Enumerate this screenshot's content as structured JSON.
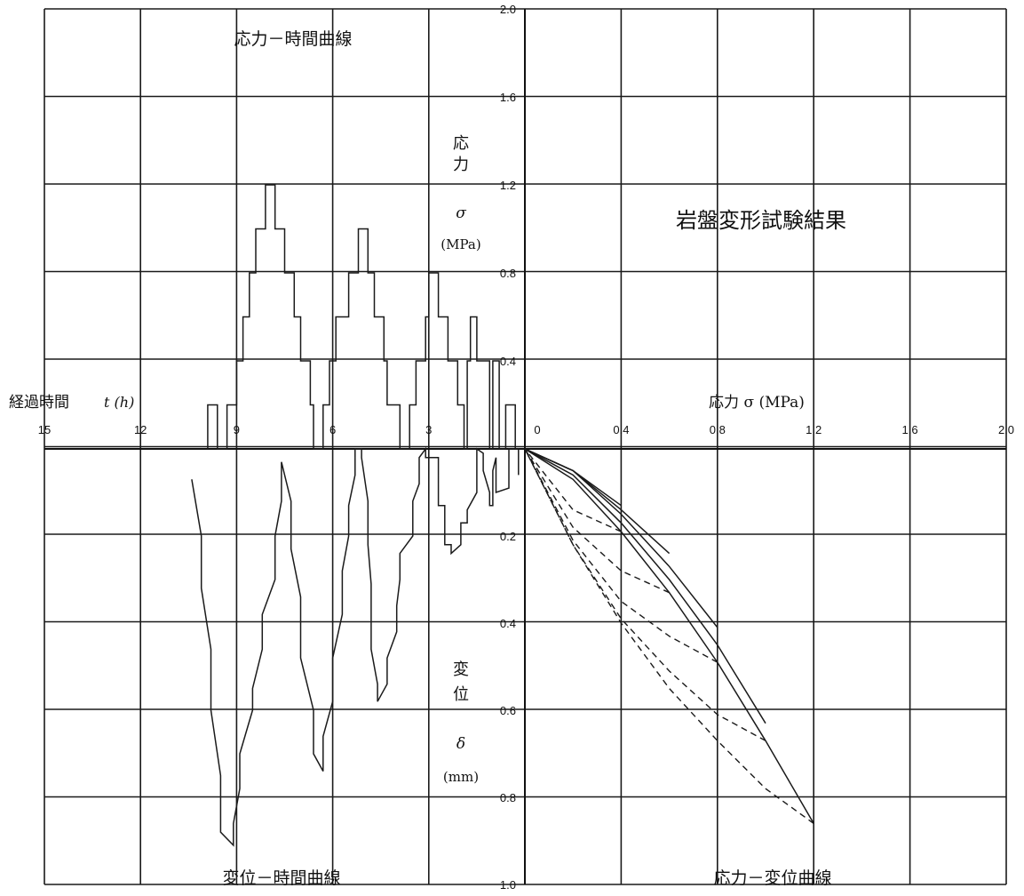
{
  "texts": {
    "main_title": "岩盤変形試験結果",
    "stress_time_title": "応力－時間曲線",
    "disp_time_title": "変位－時間曲線",
    "stress_disp_title": "応力－変位曲線",
    "elapsed_label_jp": "経過時間",
    "elapsed_label_sym": "t (h)",
    "stress_v1": "応",
    "stress_v2": "力",
    "stress_sigma": "σ",
    "stress_unit": "(MPa)",
    "disp_v1": "変",
    "disp_v2": "位",
    "disp_delta": "δ",
    "disp_unit": "(mm)",
    "stress_axis_label": "応力 σ (MPa)"
  },
  "chart_data": [
    {
      "type": "line",
      "title": "応力－時間曲線",
      "xlabel": "経過時間 t (h)",
      "ylabel": "応力 σ (MPa)",
      "x_direction": "reversed",
      "xlim": [
        15,
        0
      ],
      "ylim": [
        0,
        2.0
      ],
      "x_ticks": [
        "15",
        "12",
        "9",
        "6",
        "3"
      ],
      "y_ticks": [
        "0.4",
        "0.8",
        "1.2",
        "1.6",
        "2.0"
      ],
      "grid": true,
      "series": [
        {
          "x": [
            0.3,
            0.3,
            0.6,
            0.6,
            0.8,
            0.8,
            1.0,
            1.0,
            1.1,
            1.1,
            1.5,
            1.5,
            1.7,
            1.7,
            1.8,
            1.8,
            1.9,
            1.9,
            2.1,
            2.1,
            2.4,
            2.4,
            2.7,
            2.7,
            3.0,
            3.0,
            3.1,
            3.1,
            3.4,
            3.4,
            3.6,
            3.6,
            3.9,
            3.9,
            4.3,
            4.3,
            4.4,
            4.4,
            4.7,
            4.7,
            4.9,
            4.9,
            5.2,
            5.2,
            5.5,
            5.5,
            5.9,
            5.9,
            6.1,
            6.1,
            6.3,
            6.3,
            6.6,
            6.6,
            6.7,
            6.7,
            7.0,
            7.0,
            7.2,
            7.2,
            7.5,
            7.5,
            7.8,
            7.8,
            8.1,
            8.1,
            8.4,
            8.4,
            8.6,
            8.6,
            8.8,
            8.8,
            9.0,
            9.0,
            9.3,
            9.3,
            9.6,
            9.6,
            9.9,
            9.9
          ],
          "y": [
            0,
            0.2,
            0.2,
            0,
            0,
            0.4,
            0.4,
            0,
            0,
            0.4,
            0.4,
            0.6,
            0.6,
            0.4,
            0.4,
            0,
            0,
            0.2,
            0.2,
            0.4,
            0.4,
            0.6,
            0.6,
            0.8,
            0.8,
            0.6,
            0.6,
            0.4,
            0.4,
            0.2,
            0.2,
            0,
            0,
            0.2,
            0.2,
            0.4,
            0.4,
            0.6,
            0.6,
            0.8,
            0.8,
            1.0,
            1.0,
            0.8,
            0.8,
            0.6,
            0.6,
            0.4,
            0.4,
            0.2,
            0.2,
            0,
            0,
            0.2,
            0.2,
            0.4,
            0.4,
            0.6,
            0.6,
            0.8,
            0.8,
            1.0,
            1.0,
            1.2,
            1.2,
            1.0,
            1.0,
            0.8,
            0.8,
            0.6,
            0.6,
            0.4,
            0.4,
            0.2,
            0.2,
            0,
            0,
            0.2,
            0.2,
            0
          ]
        }
      ]
    },
    {
      "type": "line",
      "title": "変位－時間曲線",
      "xlabel": "経過時間 t (h)",
      "ylabel": "変位 δ (mm)",
      "x_direction": "reversed",
      "y_direction": "downward",
      "xlim": [
        15,
        0
      ],
      "ylim": [
        0,
        1.0
      ],
      "y_ticks": [
        "0.2",
        "0.4",
        "0.6",
        "0.8",
        "1.0"
      ],
      "grid": true,
      "series": [
        {
          "x": [
            0.2,
            0.2,
            0.5,
            0.5,
            0.9,
            0.9,
            1.0,
            1.0,
            1.1,
            1.1,
            1.3,
            1.3,
            1.5,
            1.5,
            1.8,
            1.8,
            2.0,
            2.0,
            2.3,
            2.3,
            2.5,
            2.5,
            2.7,
            2.7,
            3.1,
            3.1,
            3.3,
            3.3,
            3.5,
            3.5,
            3.9,
            3.9,
            4.0,
            4.0,
            4.3,
            4.3,
            4.6,
            4.6,
            4.8,
            4.8,
            4.9,
            4.9,
            5.1,
            5.1,
            5.3,
            5.3,
            5.5,
            5.5,
            5.7,
            5.7,
            6.0,
            6.0,
            6.3,
            6.3,
            6.6,
            6.6,
            7.0,
            7.0,
            7.3,
            7.3,
            7.6,
            7.6,
            7.8,
            7.8,
            8.2,
            8.2,
            8.5,
            8.5,
            8.9,
            8.9,
            9.1,
            9.1,
            9.5,
            9.5,
            9.8,
            9.8,
            10.1,
            10.1,
            10.4
          ],
          "y": [
            0.06,
            0,
            0,
            0.09,
            0.1,
            0.02,
            0.05,
            0.13,
            0.13,
            0.1,
            0.05,
            0.01,
            0,
            0.1,
            0.14,
            0.17,
            0.17,
            0.22,
            0.24,
            0.22,
            0.22,
            0.13,
            0.13,
            0.02,
            0.02,
            0,
            0.02,
            0.08,
            0.12,
            0.2,
            0.24,
            0.3,
            0.36,
            0.42,
            0.48,
            0.54,
            0.58,
            0.54,
            0.46,
            0.31,
            0.22,
            0.12,
            0.02,
            0,
            0,
            0.06,
            0.13,
            0.2,
            0.28,
            0.38,
            0.48,
            0.58,
            0.66,
            0.74,
            0.7,
            0.6,
            0.48,
            0.34,
            0.23,
            0.12,
            0.03,
            0.12,
            0.2,
            0.3,
            0.38,
            0.46,
            0.55,
            0.6,
            0.7,
            0.78,
            0.86,
            0.91,
            0.88,
            0.75,
            0.6,
            0.46,
            0.32,
            0.2,
            0.07
          ]
        }
      ]
    },
    {
      "type": "line",
      "title": "応力－変位曲線",
      "xlabel": "応力 σ (MPa)",
      "ylabel": "変位 δ (mm)",
      "y_direction": "downward",
      "xlim": [
        0,
        2.0
      ],
      "ylim": [
        0,
        1.0
      ],
      "x_ticks": [
        "0",
        "0.4",
        "0.8",
        "1.2",
        "1.6",
        "2.0"
      ],
      "grid": true,
      "series": [
        {
          "style": "solid",
          "x": [
            0,
            0.2,
            0.4,
            0.6,
            0.8,
            1.0,
            1.2
          ],
          "y": [
            0,
            0.07,
            0.19,
            0.33,
            0.49,
            0.67,
            0.86
          ]
        },
        {
          "style": "solid",
          "x": [
            0,
            0.2,
            0.4,
            0.6,
            0.8,
            1.0
          ],
          "y": [
            0,
            0.06,
            0.17,
            0.3,
            0.45,
            0.63
          ]
        },
        {
          "style": "solid",
          "x": [
            0,
            0.2,
            0.4,
            0.6,
            0.8
          ],
          "y": [
            0,
            0.05,
            0.15,
            0.27,
            0.41
          ]
        },
        {
          "style": "solid",
          "x": [
            0,
            0.2,
            0.4,
            0.6
          ],
          "y": [
            0,
            0.05,
            0.14,
            0.24
          ]
        },
        {
          "style": "solid",
          "x": [
            0,
            0.2,
            0.4
          ],
          "y": [
            0,
            0.05,
            0.13
          ]
        },
        {
          "style": "dashed",
          "x": [
            1.2,
            1.0,
            0.8,
            0.6,
            0.4,
            0.2,
            0
          ],
          "y": [
            0.86,
            0.78,
            0.67,
            0.55,
            0.4,
            0.22,
            0
          ]
        },
        {
          "style": "dashed",
          "x": [
            1.0,
            0.8,
            0.6,
            0.4,
            0.2,
            0
          ],
          "y": [
            0.67,
            0.61,
            0.51,
            0.39,
            0.22,
            0
          ]
        },
        {
          "style": "dashed",
          "x": [
            0.8,
            0.6,
            0.4,
            0.2,
            0
          ],
          "y": [
            0.49,
            0.43,
            0.35,
            0.21,
            0
          ]
        },
        {
          "style": "dashed",
          "x": [
            0.6,
            0.4,
            0.2,
            0
          ],
          "y": [
            0.33,
            0.28,
            0.18,
            0
          ]
        },
        {
          "style": "dashed",
          "x": [
            0.4,
            0.2,
            0
          ],
          "y": [
            0.19,
            0.14,
            0
          ]
        }
      ]
    }
  ]
}
